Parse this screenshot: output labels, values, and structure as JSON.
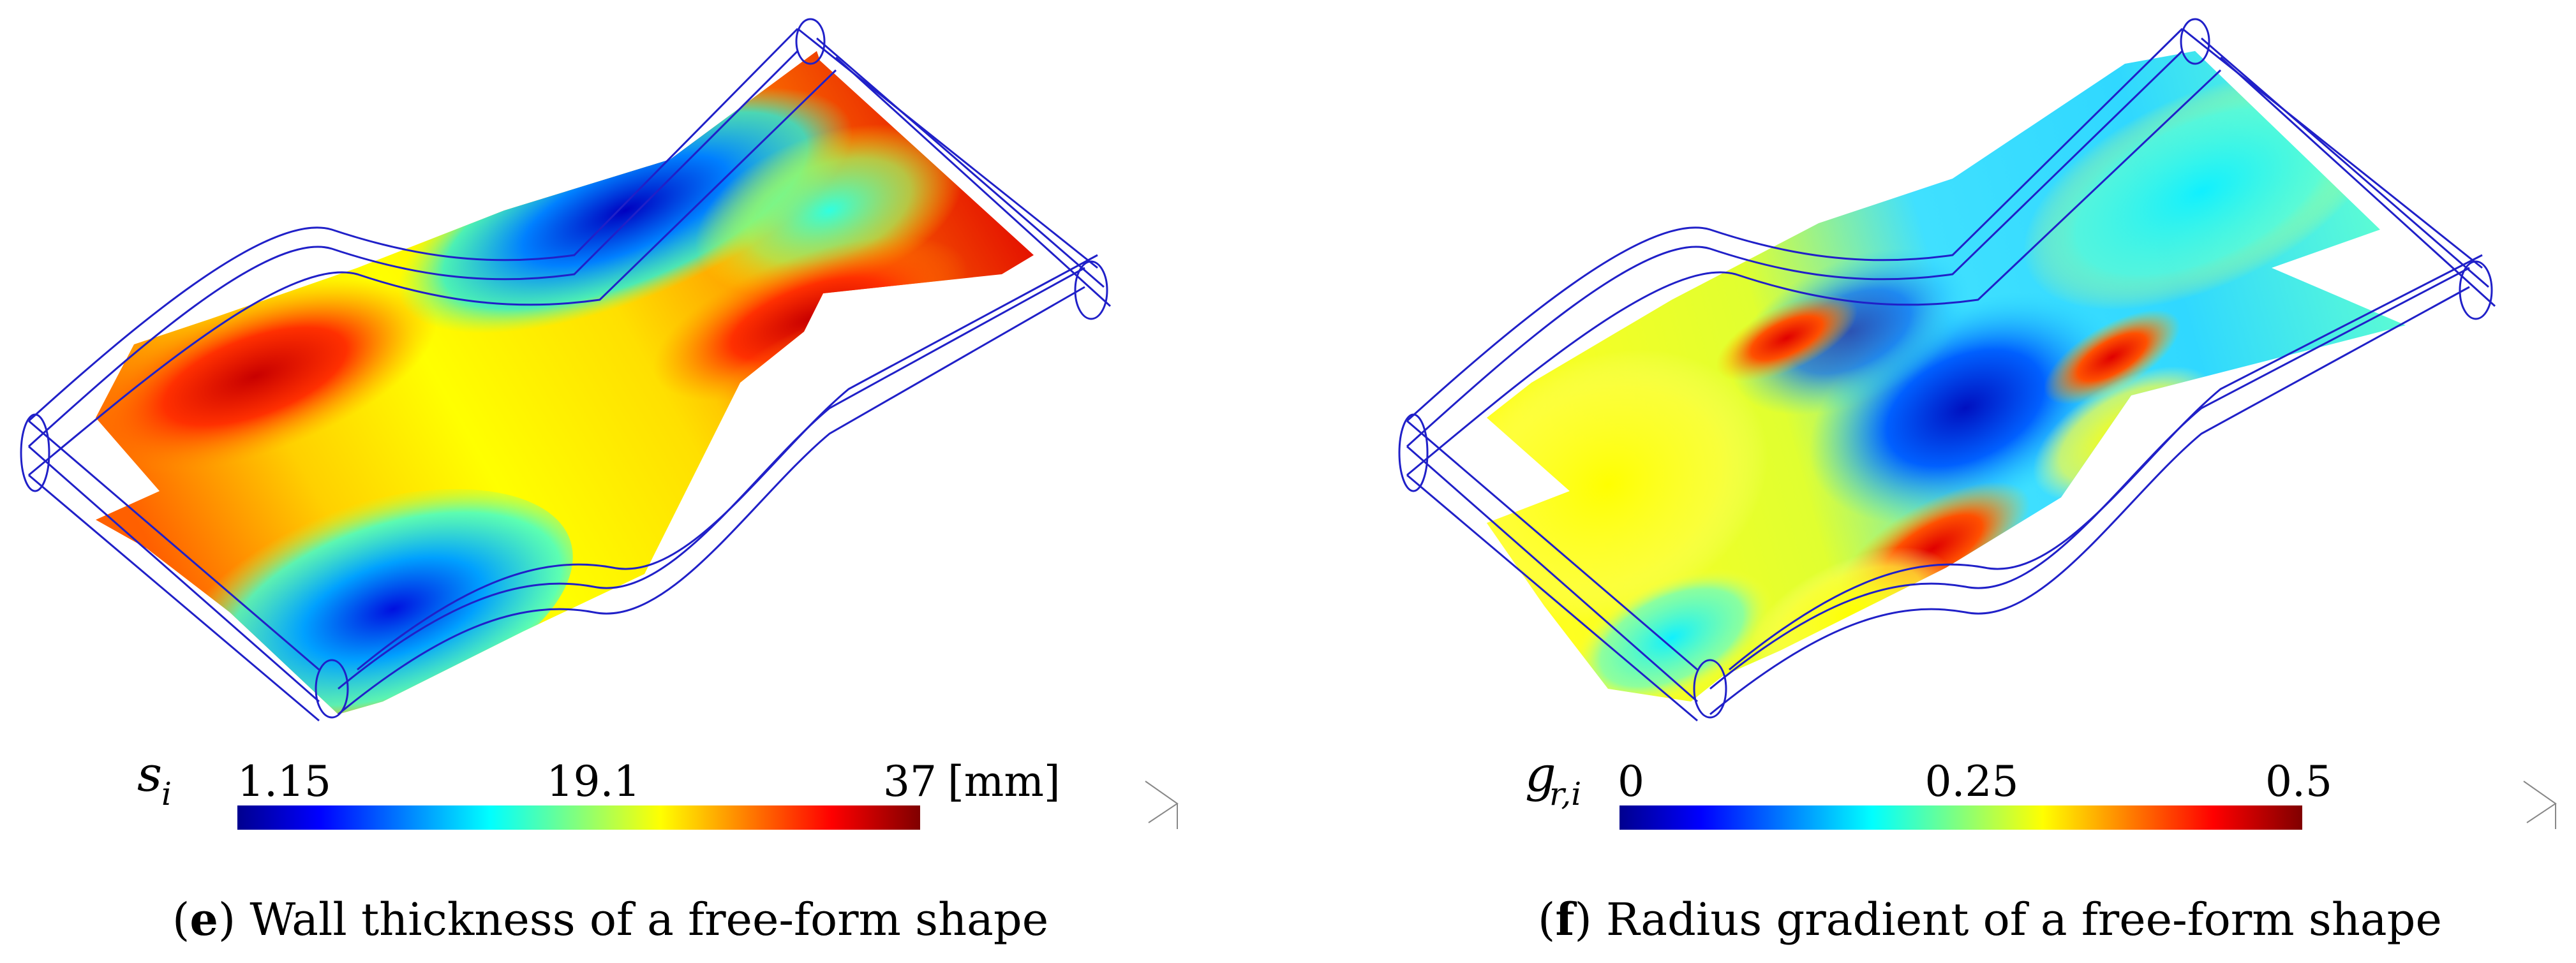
{
  "panels": [
    {
      "id": "e",
      "caption_tag": "e",
      "caption_text": "Wall thickness of a free-form shape",
      "colorbar": {
        "symbol": "s",
        "subscript": "i",
        "ticks": [
          "1.15",
          "19.1",
          "37"
        ],
        "unit": "[mm]",
        "colormap": "jet"
      }
    },
    {
      "id": "f",
      "caption_tag": "f",
      "caption_text": "Radius gradient of a free-form shape",
      "colorbar": {
        "symbol": "g",
        "subscript": "r,i",
        "ticks": [
          "0",
          "0.25",
          "0.5"
        ],
        "unit": "",
        "colormap": "jet"
      }
    }
  ],
  "colors": {
    "wireframe": "#2020c8",
    "jet_dark_blue": "#00008f",
    "jet_blue": "#0000ff",
    "jet_cyan": "#00ffff",
    "jet_yellow": "#ffff00",
    "jet_red": "#ff0000",
    "jet_dark_red": "#800000"
  }
}
